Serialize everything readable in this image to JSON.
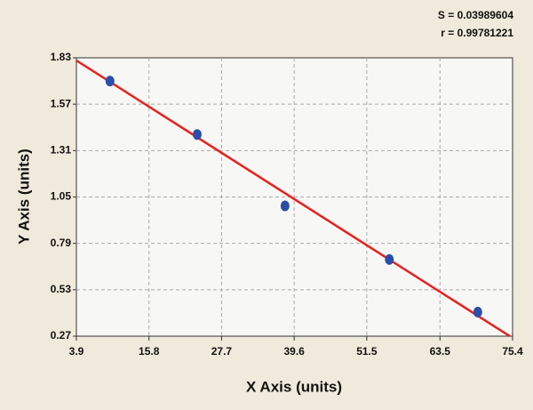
{
  "chart_data": {
    "type": "scatter",
    "annotations": [
      "S = 0.03989604",
      "r = 0.99781221"
    ],
    "x_label": "X Axis (units)",
    "y_label": "Y Axis (units)",
    "series": [
      {
        "color": "#2b4fa8",
        "x": [
          9.4,
          23.7,
          38.1,
          55.2,
          69.7
        ],
        "values": [
          1.7,
          1.4,
          1.0,
          0.7,
          0.405
        ]
      }
    ],
    "fit_line": {
      "color": "#e8201c",
      "x": [
        3.9,
        75.4
      ],
      "values": [
        1.815,
        0.26
      ]
    },
    "xlim": [
      3.9,
      75.4
    ],
    "xticks": [
      3.9,
      15.8,
      27.7,
      39.6,
      51.5,
      63.5,
      75.4
    ],
    "ylim": [
      0.27,
      1.83
    ],
    "yticks": [
      0.27,
      0.53,
      0.79,
      1.05,
      1.31,
      1.57,
      1.83
    ],
    "grid": true
  }
}
